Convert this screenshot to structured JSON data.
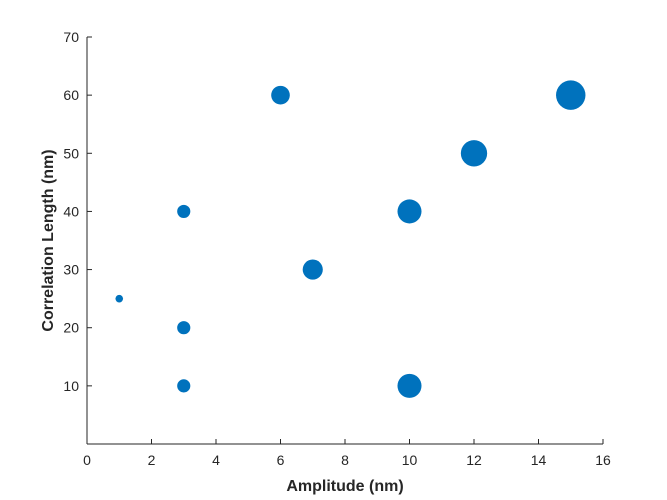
{
  "chart_data": {
    "type": "scatter",
    "xlabel": "Amplitude (nm)",
    "ylabel": "Correlation Length (nm)",
    "xlim": [
      0,
      16
    ],
    "ylim": [
      0,
      70
    ],
    "xticks": [
      0,
      2,
      4,
      6,
      8,
      10,
      12,
      14,
      16
    ],
    "yticks": [
      10,
      20,
      30,
      40,
      50,
      60,
      70
    ],
    "grid": false,
    "marker_color": "#0072BD",
    "axis_color": "#262626",
    "marker_size_encodes": "x",
    "points": [
      {
        "x": 1,
        "y": 25
      },
      {
        "x": 3,
        "y": 10
      },
      {
        "x": 3,
        "y": 20
      },
      {
        "x": 3,
        "y": 40
      },
      {
        "x": 6,
        "y": 60
      },
      {
        "x": 7,
        "y": 30
      },
      {
        "x": 10,
        "y": 10
      },
      {
        "x": 10,
        "y": 40
      },
      {
        "x": 12,
        "y": 50
      },
      {
        "x": 15,
        "y": 60
      }
    ]
  }
}
